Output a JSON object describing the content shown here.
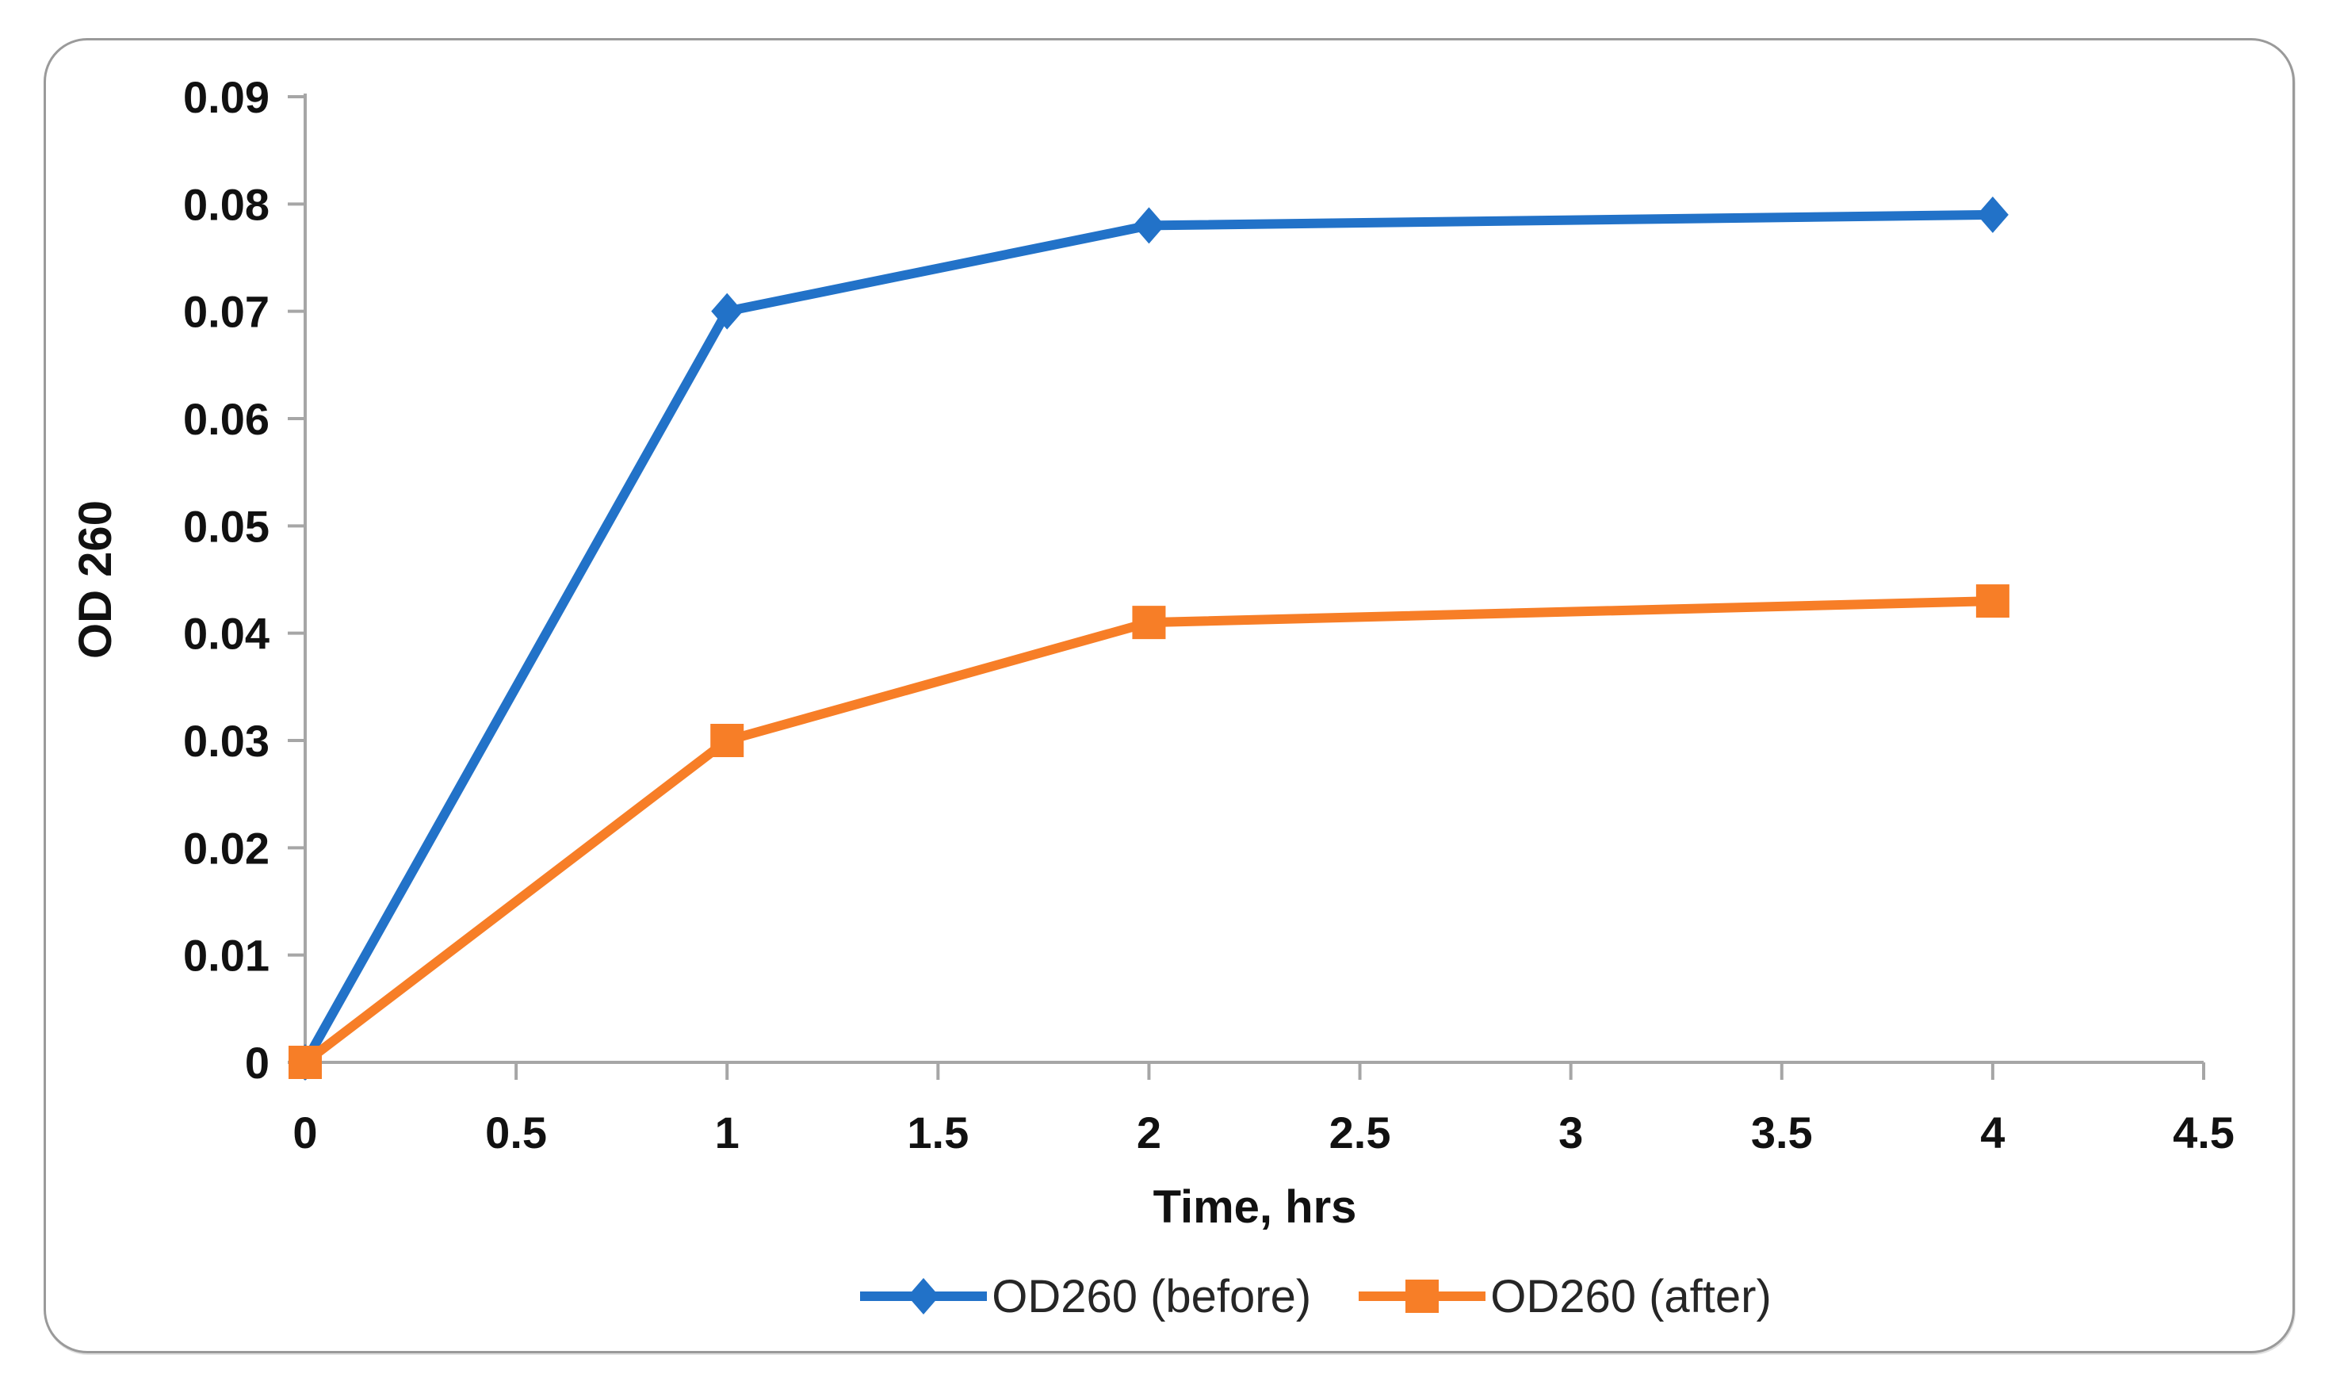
{
  "chart_data": {
    "type": "line",
    "title": "",
    "xlabel": "Time, hrs",
    "ylabel": "OD 260",
    "xlim": [
      0,
      4.5
    ],
    "ylim": [
      0,
      0.09
    ],
    "grid": false,
    "legend_position": "bottom",
    "x_ticks": [
      0,
      0.5,
      1,
      1.5,
      2,
      2.5,
      3,
      3.5,
      4,
      4.5
    ],
    "x_tick_labels": [
      "0",
      "0.5",
      "1",
      "1.5",
      "2",
      "2.5",
      "3",
      "3.5",
      "4",
      "4.5"
    ],
    "y_ticks": [
      0,
      0.01,
      0.02,
      0.03,
      0.04,
      0.05,
      0.06,
      0.07,
      0.08,
      0.09
    ],
    "y_tick_labels": [
      "0",
      "0.01",
      "0.02",
      "0.03",
      "0.04",
      "0.05",
      "0.06",
      "0.07",
      "0.08",
      "0.09"
    ],
    "x": [
      0,
      1,
      2,
      4
    ],
    "series": [
      {
        "name": "OD260 (before)",
        "marker": "diamond",
        "color": "#2272c8",
        "values": [
          0,
          0.07,
          0.078,
          0.079
        ]
      },
      {
        "name": "OD260 (after)",
        "marker": "square",
        "color": "#f77e27",
        "values": [
          0,
          0.03,
          0.041,
          0.043
        ]
      }
    ],
    "colors": {
      "axis": "#a6a6a6",
      "text": "#111111",
      "card_border": "#9a9a9a",
      "background": "#ffffff"
    }
  }
}
